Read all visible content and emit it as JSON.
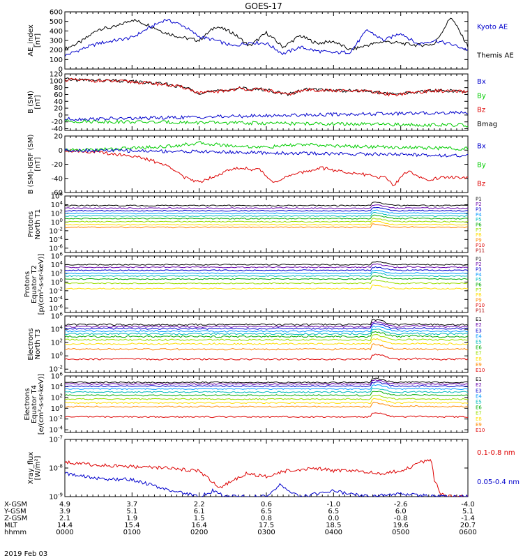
{
  "title": "GOES-17",
  "date_label": "2019 Feb 03",
  "chart_data": [
    {
      "id": "ae",
      "type": "line",
      "ylabel": "AE_index\n[nT]",
      "yticks": [
        "600",
        "500",
        "400",
        "300",
        "200",
        "100",
        "0"
      ],
      "ylim": [
        0,
        600
      ],
      "legend": [
        {
          "name": "Kyoto AE",
          "color": "#0000cc"
        },
        {
          "name": "Themis AE",
          "color": "#000000"
        }
      ],
      "series": [
        {
          "name": "Themis AE",
          "color": "#000000",
          "x": [
            0,
            0.25,
            0.5,
            0.75,
            1.0,
            1.25,
            1.5,
            1.75,
            2.0,
            2.25,
            2.5,
            2.75,
            3.0,
            3.25,
            3.5,
            3.75,
            4.0,
            4.25,
            4.5,
            4.75,
            5.0,
            5.25,
            5.5,
            5.75,
            6.0
          ],
          "values": [
            210,
            290,
            420,
            440,
            520,
            460,
            380,
            330,
            300,
            450,
            380,
            240,
            380,
            230,
            350,
            270,
            290,
            200,
            250,
            290,
            270,
            250,
            260,
            550,
            240
          ]
        },
        {
          "name": "Kyoto AE",
          "color": "#0000cc",
          "x": [
            0,
            0.25,
            0.5,
            0.75,
            1.0,
            1.25,
            1.5,
            1.75,
            2.0,
            2.25,
            2.5,
            2.75,
            3.0,
            3.25,
            3.5,
            3.75,
            4.0,
            4.25,
            4.5,
            4.75,
            5.0,
            5.25,
            5.5,
            5.75,
            6.0
          ],
          "values": [
            140,
            210,
            270,
            300,
            330,
            430,
            520,
            460,
            340,
            300,
            240,
            280,
            270,
            160,
            230,
            190,
            170,
            180,
            410,
            300,
            380,
            260,
            300,
            260,
            200
          ]
        }
      ]
    },
    {
      "id": "b",
      "type": "line",
      "ylabel": "B (SM)\n[nT]",
      "yticks": [
        "120",
        "100",
        "80",
        "60",
        "40",
        "20",
        "0",
        "-20",
        "-40"
      ],
      "ylim": [
        -45,
        120
      ],
      "legend": [
        {
          "name": "Bx",
          "color": "#0000cc"
        },
        {
          "name": "By",
          "color": "#00cc00"
        },
        {
          "name": "Bz",
          "color": "#dd0000"
        },
        {
          "name": "Bmag",
          "color": "#000000"
        }
      ],
      "series": [
        {
          "name": "Bmag",
          "color": "#000000",
          "x": [
            0,
            0.5,
            1.0,
            1.5,
            1.8,
            2.0,
            2.3,
            2.6,
            3.0,
            3.3,
            3.6,
            4.0,
            4.5,
            4.9,
            5.1,
            5.5,
            6.0
          ],
          "values": [
            104,
            101,
            98,
            90,
            80,
            65,
            70,
            78,
            74,
            60,
            75,
            72,
            70,
            60,
            65,
            72,
            68
          ]
        },
        {
          "name": "Bz",
          "color": "#dd0000",
          "x": [
            0,
            0.5,
            1.0,
            1.5,
            1.8,
            2.0,
            2.3,
            2.6,
            3.0,
            3.3,
            3.6,
            4.0,
            4.5,
            4.9,
            5.1,
            5.5,
            6.0
          ],
          "values": [
            103,
            100,
            97,
            89,
            79,
            64,
            69,
            77,
            73,
            59,
            74,
            71,
            69,
            59,
            64,
            71,
            67
          ]
        },
        {
          "name": "Bx",
          "color": "#0000cc",
          "x": [
            0,
            1.0,
            2.0,
            3.0,
            4.0,
            5.0,
            6.0
          ],
          "values": [
            -12,
            -10,
            -6,
            -2,
            2,
            4,
            8
          ]
        },
        {
          "name": "By",
          "color": "#00cc00",
          "x": [
            0,
            1.0,
            2.0,
            3.0,
            4.0,
            5.0,
            6.0
          ],
          "values": [
            -18,
            -20,
            -22,
            -24,
            -26,
            -28,
            -30
          ]
        }
      ]
    },
    {
      "id": "bdiff",
      "type": "line",
      "ylabel": "B (SM)-IGRF (SM)\n[nT]",
      "yticks": [
        "20",
        "0",
        "-20",
        "-40",
        "-60"
      ],
      "ylim": [
        -60,
        20
      ],
      "legend": [
        {
          "name": "Bx",
          "color": "#0000cc"
        },
        {
          "name": "By",
          "color": "#00cc00"
        },
        {
          "name": "Bz",
          "color": "#dd0000"
        }
      ],
      "series": [
        {
          "name": "Bz",
          "color": "#dd0000",
          "x": [
            0,
            0.5,
            1.0,
            1.3,
            1.6,
            1.8,
            2.0,
            2.4,
            2.6,
            2.9,
            3.1,
            3.4,
            3.8,
            4.1,
            4.5,
            4.8,
            4.9,
            5.1,
            5.4,
            5.7,
            6.0
          ],
          "values": [
            0,
            -3,
            -8,
            -15,
            -25,
            -40,
            -45,
            -30,
            -25,
            -28,
            -45,
            -35,
            -25,
            -30,
            -35,
            -40,
            -50,
            -30,
            -42,
            -38,
            -40
          ]
        },
        {
          "name": "By",
          "color": "#00cc00",
          "x": [
            0,
            0.5,
            1.0,
            1.5,
            2.0,
            2.5,
            3.0,
            3.5,
            4.0,
            4.5,
            5.0,
            5.5,
            6.0
          ],
          "values": [
            0,
            1,
            3,
            5,
            10,
            6,
            4,
            8,
            6,
            5,
            4,
            3,
            2
          ]
        },
        {
          "name": "Bx",
          "color": "#0000cc",
          "x": [
            0,
            1.0,
            2.0,
            3.0,
            4.0,
            5.0,
            6.0
          ],
          "values": [
            0,
            -1,
            -2,
            -4,
            -5,
            -6,
            -8
          ]
        }
      ]
    },
    {
      "id": "p1",
      "type": "line",
      "ylabel": "Protons\nNorth T1",
      "log": true,
      "yticks": [
        "10^6",
        "10^4",
        "10^2",
        "10^0",
        "10^-2",
        "10^-4",
        "10^-6"
      ],
      "ylim": [
        -7,
        6
      ],
      "legend": [
        {
          "name": "P1",
          "color": "#000000"
        },
        {
          "name": "P2",
          "color": "#6600aa"
        },
        {
          "name": "P3",
          "color": "#0000cc"
        },
        {
          "name": "P4",
          "color": "#0099ff"
        },
        {
          "name": "P5",
          "color": "#00bbbb"
        },
        {
          "name": "P6",
          "color": "#00aa00"
        },
        {
          "name": "P7",
          "color": "#99dd00"
        },
        {
          "name": "P8",
          "color": "#ffdd00"
        },
        {
          "name": "P9",
          "color": "#ff8800"
        },
        {
          "name": "P10",
          "color": "#dd0000"
        },
        {
          "name": "P11",
          "color": "#aa0000"
        }
      ],
      "levels": [
        3.8,
        3.2,
        2.6,
        2.0,
        1.4,
        0.8,
        0.1,
        -0.6,
        -1.2
      ],
      "burst_x": 4.7
    },
    {
      "id": "p2",
      "type": "line",
      "ylabel": "Protons\nEquator T2\n[p/(cm²-s-sr-keV)]",
      "log": true,
      "yticks": [
        "10^6",
        "10^4",
        "10^2",
        "10^0",
        "10^-2",
        "10^-4",
        "10^-6"
      ],
      "ylim": [
        -7,
        6
      ],
      "legend": [
        {
          "name": "P1",
          "color": "#000000"
        },
        {
          "name": "P2",
          "color": "#6600aa"
        },
        {
          "name": "P3",
          "color": "#0000cc"
        },
        {
          "name": "P4",
          "color": "#0099ff"
        },
        {
          "name": "P5",
          "color": "#00bbbb"
        },
        {
          "name": "P6",
          "color": "#00aa00"
        },
        {
          "name": "P7",
          "color": "#99dd00"
        },
        {
          "name": "P8",
          "color": "#ffdd00"
        },
        {
          "name": "P9",
          "color": "#ff8800"
        },
        {
          "name": "P10",
          "color": "#dd0000"
        },
        {
          "name": "P11",
          "color": "#aa0000"
        }
      ],
      "levels": [
        4.0,
        3.4,
        2.7,
        2.0,
        1.4,
        0.7,
        -0.3,
        -1.5
      ],
      "burst_x": 4.7
    },
    {
      "id": "e1",
      "type": "line",
      "ylabel": "Electrons\nNorth T3",
      "log": true,
      "yticks": [
        "10^6",
        "10^4",
        "10^2",
        "10^0",
        "10^-2"
      ],
      "ylim": [
        -2.5,
        6
      ],
      "legend": [
        {
          "name": "E1",
          "color": "#000000"
        },
        {
          "name": "E2",
          "color": "#6600aa"
        },
        {
          "name": "E3",
          "color": "#0000cc"
        },
        {
          "name": "E4",
          "color": "#0099ff"
        },
        {
          "name": "E5",
          "color": "#00bbbb"
        },
        {
          "name": "E6",
          "color": "#00aa00"
        },
        {
          "name": "E7",
          "color": "#99dd00"
        },
        {
          "name": "E8",
          "color": "#ffdd00"
        },
        {
          "name": "E9",
          "color": "#ff8800"
        },
        {
          "name": "E10",
          "color": "#dd0000"
        }
      ],
      "levels": [
        4.7,
        4.4,
        4.1,
        3.7,
        3.3,
        2.9,
        2.4,
        1.8,
        1.0,
        -0.5
      ],
      "burst_x": 4.7
    },
    {
      "id": "e2",
      "type": "line",
      "ylabel": "Electrons\nEquator T4\n[e/(cm²-s-sr-keV)]",
      "log": true,
      "yticks": [
        "10^6",
        "10^4",
        "10^2",
        "10^0",
        "10^-2",
        "10^-4"
      ],
      "ylim": [
        -4.5,
        6
      ],
      "legend": [
        {
          "name": "E1",
          "color": "#000000"
        },
        {
          "name": "E2",
          "color": "#6600aa"
        },
        {
          "name": "E3",
          "color": "#0000cc"
        },
        {
          "name": "E4",
          "color": "#0099ff"
        },
        {
          "name": "E5",
          "color": "#00bbbb"
        },
        {
          "name": "E6",
          "color": "#00aa00"
        },
        {
          "name": "E7",
          "color": "#99dd00"
        },
        {
          "name": "E8",
          "color": "#ffdd00"
        },
        {
          "name": "E9",
          "color": "#ff8800"
        },
        {
          "name": "E10",
          "color": "#dd0000"
        }
      ],
      "levels": [
        4.8,
        4.5,
        4.1,
        3.6,
        3.0,
        2.4,
        1.7,
        1.0,
        0.3,
        -1.6
      ],
      "burst_x": 4.7
    },
    {
      "id": "xray",
      "type": "line",
      "ylabel": "Xray_flux\n[W/m²]",
      "log": true,
      "yticks": [
        "10^-7",
        "10^-8",
        "10^-9"
      ],
      "ylim": [
        -9,
        -7
      ],
      "legend": [
        {
          "name": "0.1-0.8 nm",
          "color": "#dd0000"
        },
        {
          "name": "0.05-0.4 nm",
          "color": "#0000cc"
        }
      ],
      "series": [
        {
          "name": "0.1-0.8 nm",
          "color": "#dd0000",
          "x": [
            0,
            0.5,
            1.0,
            1.5,
            2.0,
            2.3,
            2.7,
            3.0,
            3.3,
            3.7,
            4.0,
            4.4,
            4.7,
            5.0,
            5.3,
            5.45,
            5.5,
            5.6,
            5.7,
            6.0
          ],
          "values": [
            -7.8,
            -7.9,
            -7.95,
            -8.0,
            -8.1,
            -8.7,
            -8.2,
            -8.3,
            -8.1,
            -8.0,
            -8.1,
            -8.1,
            -8.2,
            -8.1,
            -7.8,
            -7.7,
            -8.4,
            -8.9,
            -9.0,
            -9.0
          ]
        },
        {
          "name": "0.05-0.4 nm",
          "color": "#0000cc",
          "x": [
            0,
            0.3,
            0.6,
            1.0,
            1.3,
            1.6,
            2.0,
            2.2,
            2.4,
            3.0,
            3.2,
            3.5,
            4.0,
            4.5,
            5.0,
            5.5,
            6.0
          ],
          "values": [
            -8.2,
            -8.3,
            -8.4,
            -8.4,
            -8.6,
            -8.8,
            -9.0,
            -8.8,
            -9.0,
            -9.0,
            -8.6,
            -9.0,
            -8.8,
            -9.0,
            -8.9,
            -9.0,
            -9.0
          ]
        }
      ]
    }
  ],
  "x_axis": {
    "hhmm": [
      "0000",
      "0100",
      "0200",
      "0300",
      "0400",
      "0500",
      "0600"
    ],
    "rows": [
      {
        "label": "X-GSM",
        "values": [
          "4.9",
          "3.7",
          "2.2",
          "0.6",
          "-1.0",
          "-2.6",
          "-4.0"
        ]
      },
      {
        "label": "Y-GSM",
        "values": [
          "3.9",
          "5.1",
          "6.1",
          "6.5",
          "6.5",
          "6.0",
          "5.1"
        ]
      },
      {
        "label": "Z-GSM",
        "values": [
          "2.1",
          "1.9",
          "1.5",
          "0.8",
          "0.0",
          "-0.8",
          "-1.4"
        ]
      },
      {
        "label": "MLT",
        "values": [
          "14.4",
          "15.4",
          "16.4",
          "17.5",
          "18.5",
          "19.6",
          "20.7"
        ]
      },
      {
        "label": "hhmm",
        "values": [
          "0000",
          "0100",
          "0200",
          "0300",
          "0400",
          "0500",
          "0600"
        ]
      }
    ]
  }
}
